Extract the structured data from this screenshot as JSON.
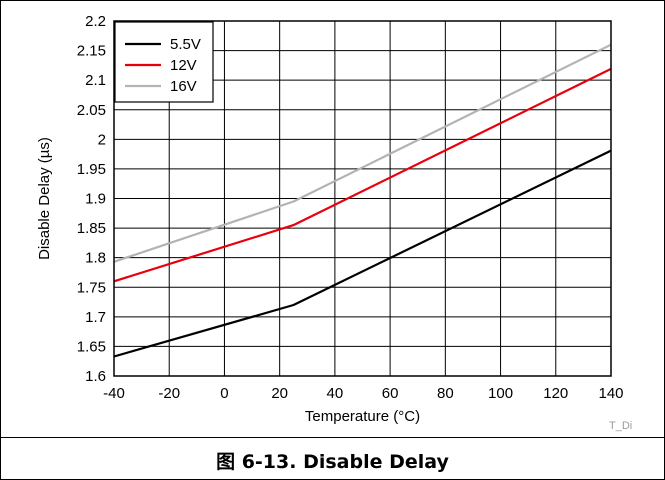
{
  "chart_data": {
    "type": "line",
    "xlabel": "Temperature (°C)",
    "ylabel": "Disable Delay (µs)",
    "xlim": [
      -40,
      140
    ],
    "ylim": [
      1.6,
      2.2
    ],
    "xticks": [
      "-40",
      "-20",
      "0",
      "20",
      "40",
      "60",
      "80",
      "100",
      "120",
      "140"
    ],
    "yticks": [
      "1.6",
      "1.65",
      "1.7",
      "1.75",
      "1.8",
      "1.85",
      "1.9",
      "1.95",
      "2",
      "2.05",
      "2.1",
      "2.15",
      "2.2"
    ],
    "x": [
      -40,
      25,
      140
    ],
    "grid": true,
    "legend_position": "top-left",
    "series": [
      {
        "name": "5.5V",
        "color": "#000000",
        "values": [
          1.633,
          1.72,
          1.981
        ]
      },
      {
        "name": "12V",
        "color": "#e8000d",
        "values": [
          1.76,
          1.855,
          2.119
        ]
      },
      {
        "name": "16V",
        "color": "#b3b3b3",
        "values": [
          1.793,
          1.895,
          2.16
        ]
      }
    ]
  },
  "watermark": "T_Di",
  "caption": "图 6-13. Disable Delay"
}
